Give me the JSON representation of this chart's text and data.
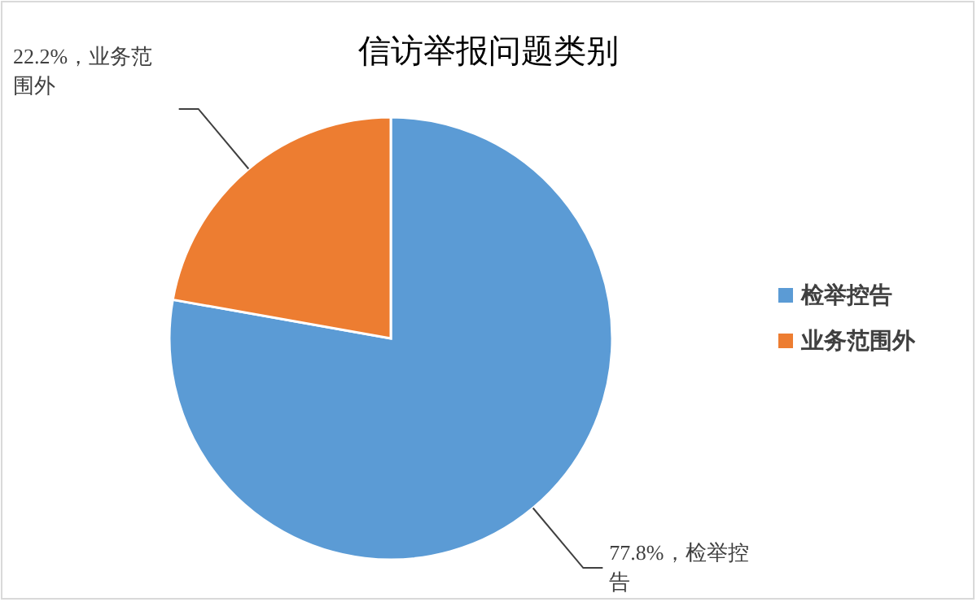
{
  "chart_data": {
    "type": "pie",
    "title": "信访举报问题类别",
    "categories": [
      "检举控告",
      "业务范围外"
    ],
    "values": [
      77.8,
      22.2
    ],
    "colors": [
      "#5b9bd5",
      "#ed7d31"
    ],
    "value_labels": [
      "77.8%，检举控告",
      "22.2%，业务范围外"
    ],
    "legend": "right"
  }
}
